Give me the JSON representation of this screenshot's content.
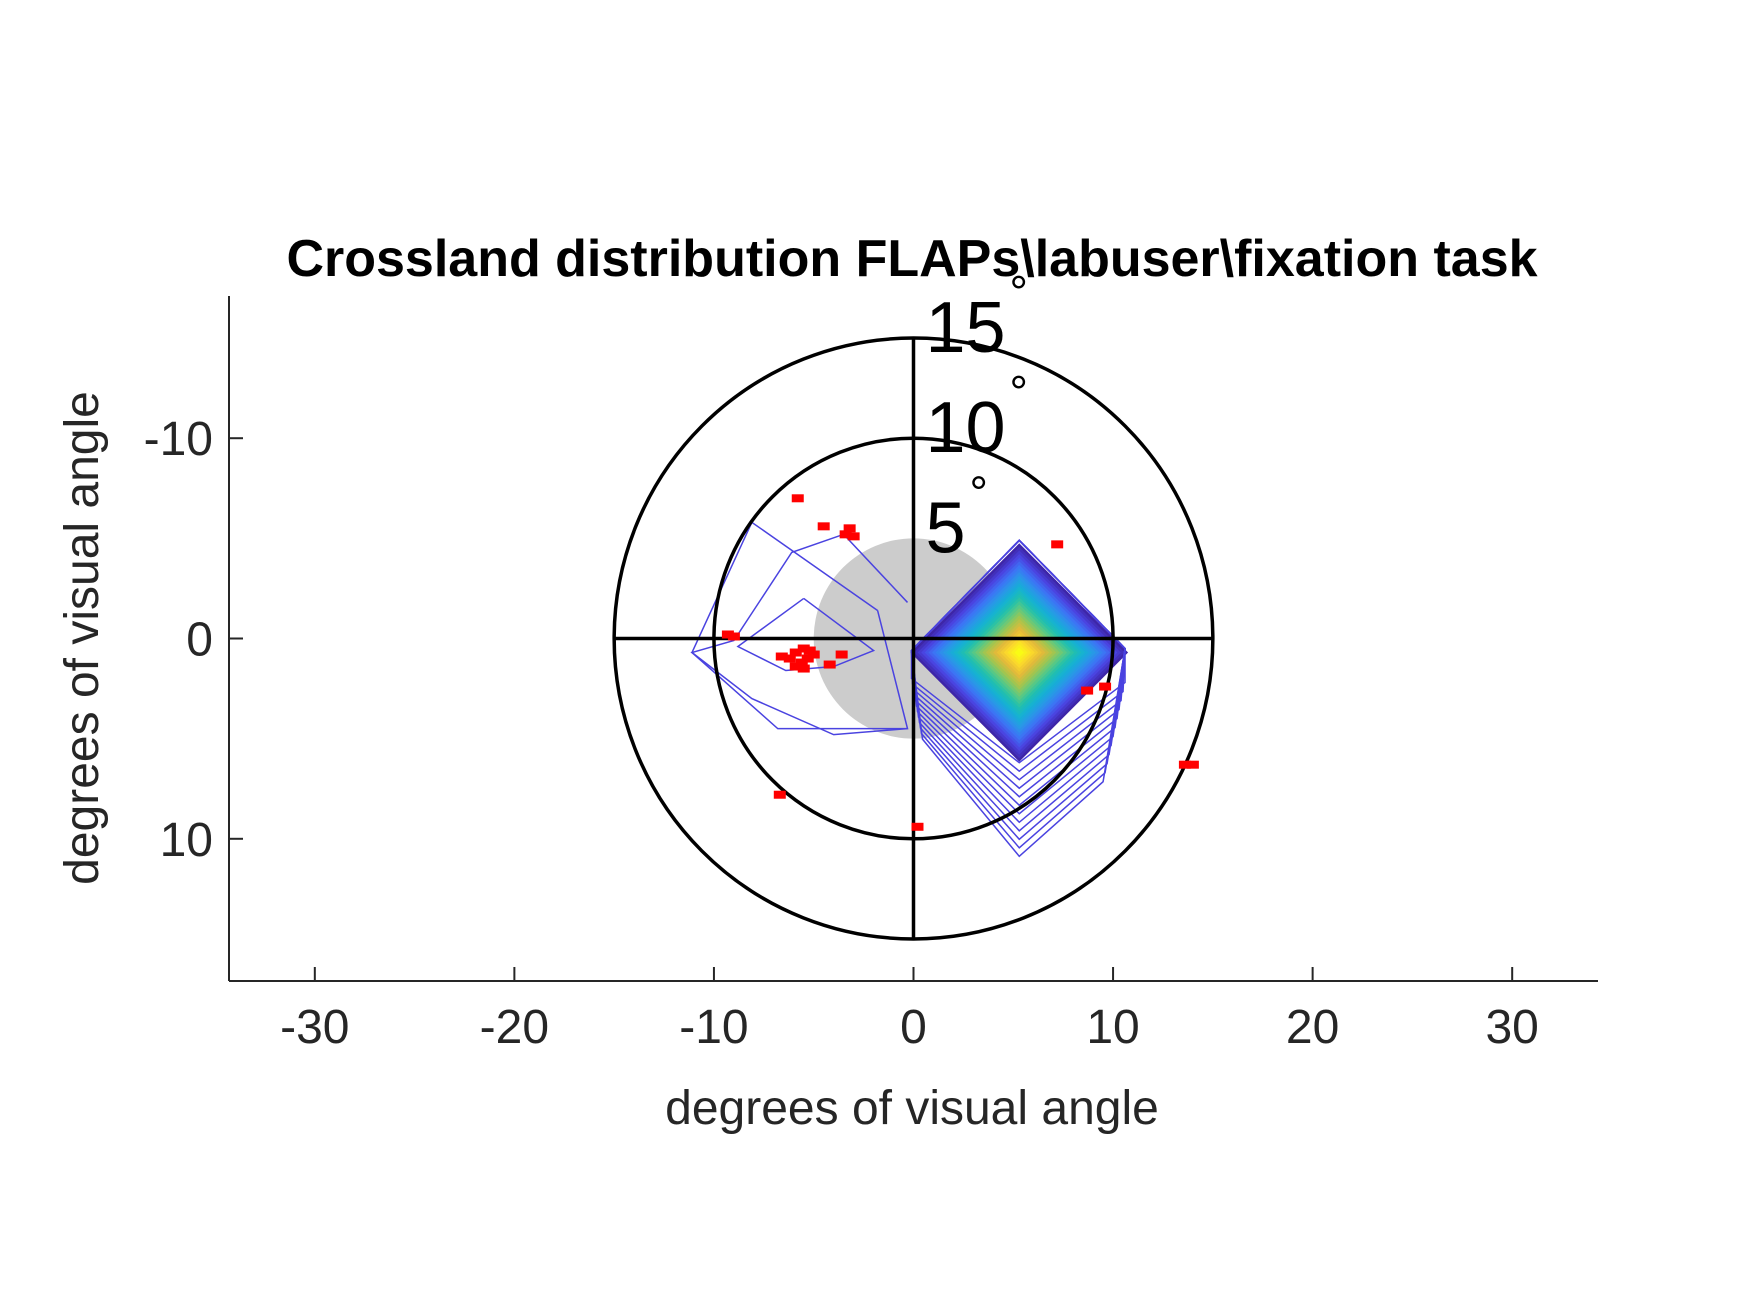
{
  "chart_data": {
    "type": "scatter",
    "title": "Crossland distribution FLAPs\\labuser\\fixation task",
    "xlabel": "degrees of visual angle",
    "ylabel": "degrees of visual angle",
    "xlim": [
      -34.3,
      34.3
    ],
    "ylim": [
      -17.1,
      17.1
    ],
    "y_reversed": true,
    "x_ticks": [
      -30,
      -20,
      -10,
      0,
      10,
      20,
      30
    ],
    "y_ticks": [
      -10,
      0,
      10
    ],
    "grid": false,
    "legend": "none",
    "rings": [
      {
        "radius": 5,
        "label": "5",
        "style": "filled",
        "color": "#cccccc"
      },
      {
        "radius": 10,
        "label": "10",
        "style": "outline",
        "color": "#000000"
      },
      {
        "radius": 15,
        "label": "15",
        "style": "outline",
        "color": "#000000"
      }
    ],
    "ring_label_unit": "°",
    "crosshair_extent": 15,
    "fixations": {
      "color": "#ff0000",
      "x": [
        -5.8,
        -4.5,
        -3.2,
        -3.0,
        -3.4,
        7.2,
        -9.3,
        -9.0,
        -5.5,
        -5.2,
        -6.6,
        -6.2,
        -5.9,
        -5.6,
        -5.3,
        -5.0,
        -5.9,
        -5.5,
        -4.2,
        -3.6,
        -6.7,
        0.2,
        13.6,
        14.0,
        8.7,
        9.6
      ],
      "y": [
        -7.0,
        -5.6,
        -5.5,
        -5.1,
        -5.2,
        -4.7,
        -0.2,
        -0.1,
        0.5,
        0.6,
        0.9,
        1.0,
        0.7,
        1.2,
        1.0,
        0.8,
        1.4,
        1.5,
        1.3,
        0.8,
        7.8,
        9.4,
        6.3,
        6.3,
        2.6,
        2.4
      ]
    },
    "density_peak": {
      "x": 5.3,
      "y": 0.7
    },
    "colormap": [
      "#3e26a8",
      "#4a43e0",
      "#3d73f5",
      "#2a96e8",
      "#15b1d4",
      "#21c0ad",
      "#60c980",
      "#a8c54c",
      "#e4b93a",
      "#fbd92b",
      "#f9fb15"
    ]
  }
}
